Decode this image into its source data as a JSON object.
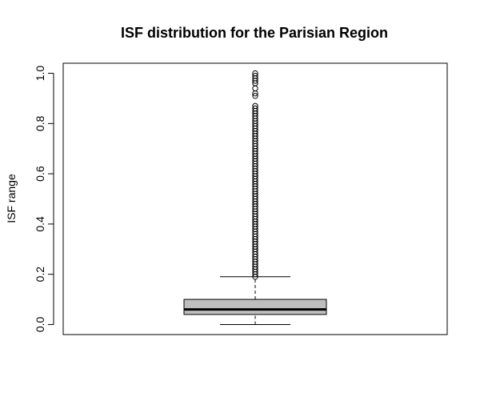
{
  "chart_data": {
    "type": "boxplot",
    "title": "ISF distribution for the Parisian Region",
    "xlabel": "",
    "ylabel": "ISF range",
    "ylim": [
      -0.04,
      1.04
    ],
    "y_ticks": [
      0.0,
      0.2,
      0.4,
      0.6,
      0.8,
      1.0
    ],
    "y_tick_labels": [
      "0.0",
      "0.2",
      "0.4",
      "0.6",
      "0.8",
      "1.0"
    ],
    "box": {
      "min": 0.0,
      "q1": 0.04,
      "median": 0.06,
      "q3": 0.1,
      "whisker_high": 0.19,
      "fill_color": "#bebebe"
    },
    "outliers": [
      0.19,
      0.2,
      0.21,
      0.22,
      0.23,
      0.24,
      0.25,
      0.26,
      0.27,
      0.28,
      0.29,
      0.3,
      0.31,
      0.32,
      0.33,
      0.34,
      0.35,
      0.36,
      0.37,
      0.38,
      0.39,
      0.4,
      0.41,
      0.42,
      0.43,
      0.44,
      0.45,
      0.46,
      0.47,
      0.48,
      0.49,
      0.5,
      0.51,
      0.52,
      0.53,
      0.54,
      0.55,
      0.56,
      0.57,
      0.58,
      0.59,
      0.6,
      0.61,
      0.62,
      0.63,
      0.64,
      0.65,
      0.66,
      0.67,
      0.68,
      0.69,
      0.7,
      0.71,
      0.72,
      0.73,
      0.74,
      0.75,
      0.76,
      0.77,
      0.78,
      0.79,
      0.8,
      0.81,
      0.82,
      0.83,
      0.84,
      0.85,
      0.86,
      0.87,
      0.91,
      0.92,
      0.94,
      0.96,
      0.97,
      0.98,
      0.99,
      1.0
    ],
    "grid": false,
    "legend": "none"
  }
}
